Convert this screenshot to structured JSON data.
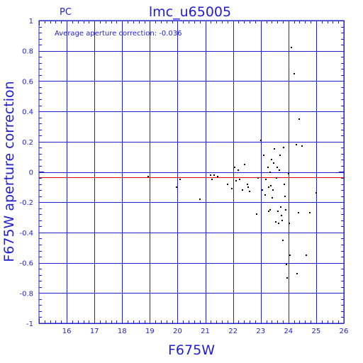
{
  "chart_data": {
    "type": "scatter",
    "title": "lmc_u65005",
    "subtitle": "PC",
    "xlabel": "F675W",
    "ylabel": "F675W aperture correction",
    "annotation": "Average aperture correction: -0.036",
    "xlim": [
      15,
      26
    ],
    "ylim": [
      -1,
      1
    ],
    "x_ticks": [
      16,
      17,
      18,
      19,
      20,
      21,
      22,
      23,
      24,
      25,
      26
    ],
    "x_tick_labels": [
      "16",
      "17",
      "18",
      "19",
      "20",
      "21",
      "22",
      "23",
      "24",
      "25",
      "26"
    ],
    "y_ticks": [
      -1,
      -0.8,
      -0.6,
      -0.4,
      -0.2,
      0,
      0.2,
      0.4,
      0.6,
      0.8,
      1
    ],
    "y_tick_labels": [
      "-1",
      "-0.8",
      "-0.6",
      "-0.4",
      "-0.2",
      "0",
      "0.2",
      "0.4",
      "0.6",
      "0.8",
      "1"
    ],
    "grid": true,
    "reference_line_y": -0.036,
    "colors": {
      "axis": "#1f1fcf",
      "reference_line": "#e00000",
      "points": "#000000"
    },
    "points": [
      {
        "x": 18.93,
        "y": -0.03
      },
      {
        "x": 19.97,
        "y": -0.1
      },
      {
        "x": 20.1,
        "y": -0.05
      },
      {
        "x": 20.8,
        "y": -0.18
      },
      {
        "x": 21.2,
        "y": -0.02
      },
      {
        "x": 21.25,
        "y": -0.05
      },
      {
        "x": 21.32,
        "y": -0.02
      },
      {
        "x": 21.45,
        "y": -0.03
      },
      {
        "x": 21.8,
        "y": -0.08
      },
      {
        "x": 21.95,
        "y": -0.11
      },
      {
        "x": 22.05,
        "y": 0.03
      },
      {
        "x": 22.1,
        "y": -0.06
      },
      {
        "x": 22.2,
        "y": 0.01
      },
      {
        "x": 22.25,
        "y": -0.05
      },
      {
        "x": 22.35,
        "y": -0.12
      },
      {
        "x": 22.42,
        "y": 0.05
      },
      {
        "x": 22.52,
        "y": -0.08
      },
      {
        "x": 22.55,
        "y": -0.1
      },
      {
        "x": 22.6,
        "y": -0.13
      },
      {
        "x": 22.85,
        "y": -0.28
      },
      {
        "x": 22.9,
        "y": -0.04
      },
      {
        "x": 23.0,
        "y": 0.21
      },
      {
        "x": 23.05,
        "y": -0.12
      },
      {
        "x": 23.1,
        "y": 0.11
      },
      {
        "x": 23.15,
        "y": -0.15
      },
      {
        "x": 23.18,
        "y": -0.05
      },
      {
        "x": 23.25,
        "y": 0.03
      },
      {
        "x": 23.28,
        "y": -0.1
      },
      {
        "x": 23.3,
        "y": -0.26
      },
      {
        "x": 23.33,
        "y": -0.25
      },
      {
        "x": 23.35,
        "y": 0.0
      },
      {
        "x": 23.37,
        "y": -0.09
      },
      {
        "x": 23.4,
        "y": 0.08
      },
      {
        "x": 23.42,
        "y": -0.17
      },
      {
        "x": 23.45,
        "y": -0.12
      },
      {
        "x": 23.48,
        "y": 0.06
      },
      {
        "x": 23.5,
        "y": 0.15
      },
      {
        "x": 23.55,
        "y": -0.33
      },
      {
        "x": 23.57,
        "y": -0.04
      },
      {
        "x": 23.6,
        "y": 0.03
      },
      {
        "x": 23.62,
        "y": -0.26
      },
      {
        "x": 23.65,
        "y": -0.34
      },
      {
        "x": 23.67,
        "y": 0.01
      },
      {
        "x": 23.7,
        "y": 0.11
      },
      {
        "x": 23.72,
        "y": -0.23
      },
      {
        "x": 23.75,
        "y": -0.29
      },
      {
        "x": 23.78,
        "y": -0.32
      },
      {
        "x": 23.8,
        "y": -0.45
      },
      {
        "x": 23.82,
        "y": 0.16
      },
      {
        "x": 23.85,
        "y": -0.08
      },
      {
        "x": 23.88,
        "y": -0.16
      },
      {
        "x": 23.9,
        "y": -0.25
      },
      {
        "x": 23.93,
        "y": -0.61
      },
      {
        "x": 23.95,
        "y": -0.7
      },
      {
        "x": 24.0,
        "y": -0.01
      },
      {
        "x": 24.02,
        "y": -0.34
      },
      {
        "x": 24.05,
        "y": -0.55
      },
      {
        "x": 24.1,
        "y": 0.82
      },
      {
        "x": 24.2,
        "y": 0.65
      },
      {
        "x": 24.28,
        "y": 0.18
      },
      {
        "x": 24.32,
        "y": -0.67
      },
      {
        "x": 24.38,
        "y": 0.35
      },
      {
        "x": 24.5,
        "y": 0.17
      },
      {
        "x": 24.65,
        "y": -0.55
      },
      {
        "x": 24.78,
        "y": -0.27
      },
      {
        "x": 25.0,
        "y": -0.14
      },
      {
        "x": 24.35,
        "y": -0.27
      }
    ]
  }
}
